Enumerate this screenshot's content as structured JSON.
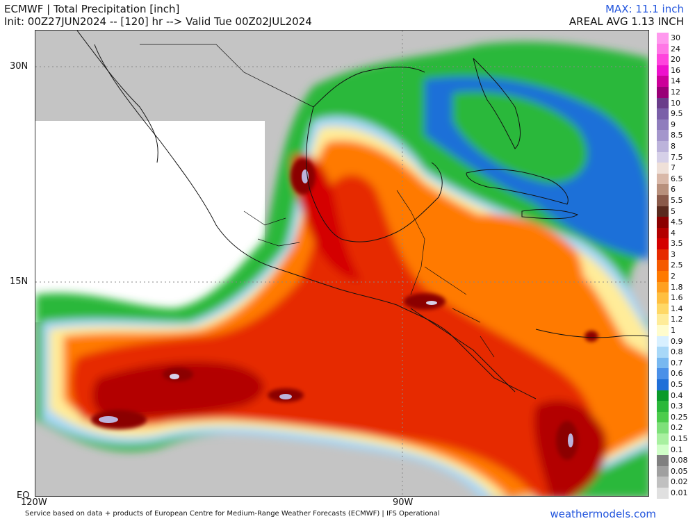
{
  "header": {
    "title": "ECMWF | Total Precipitation [inch]",
    "init": "Init: 00Z27JUN2024 -- [120] hr --> Valid Tue 00Z02JUL2024",
    "max": "MAX: 11.1 inch",
    "areal": "AREAL AVG 1.13 INCH"
  },
  "axes": {
    "lat_labels": [
      "30N",
      "15N",
      "EQ"
    ],
    "lon_labels": [
      "120W",
      "90W"
    ]
  },
  "legend": {
    "items": [
      {
        "label": "30",
        "color": "#ff99ee"
      },
      {
        "label": "24",
        "color": "#ff77e6"
      },
      {
        "label": "20",
        "color": "#ff44dd"
      },
      {
        "label": "16",
        "color": "#ee11cc"
      },
      {
        "label": "14",
        "color": "#cc0099"
      },
      {
        "label": "12",
        "color": "#990077"
      },
      {
        "label": "10",
        "color": "#6a3d8a"
      },
      {
        "label": "9.5",
        "color": "#7a5fa8"
      },
      {
        "label": "9",
        "color": "#8f7dbd"
      },
      {
        "label": "8.5",
        "color": "#a496cc"
      },
      {
        "label": "8",
        "color": "#bcb3db"
      },
      {
        "label": "7.5",
        "color": "#d6d0e8"
      },
      {
        "label": "7",
        "color": "#efe0d8"
      },
      {
        "label": "6.5",
        "color": "#d9b8a8"
      },
      {
        "label": "6",
        "color": "#b8907c"
      },
      {
        "label": "5.5",
        "color": "#8a5a4a"
      },
      {
        "label": "5",
        "color": "#5a2a1e"
      },
      {
        "label": "4.5",
        "color": "#8b0000"
      },
      {
        "label": "4",
        "color": "#b30000"
      },
      {
        "label": "3.5",
        "color": "#d40000"
      },
      {
        "label": "3",
        "color": "#e62a00"
      },
      {
        "label": "2.5",
        "color": "#f55a00"
      },
      {
        "label": "2",
        "color": "#ff7a00"
      },
      {
        "label": "1.8",
        "color": "#ffa020"
      },
      {
        "label": "1.6",
        "color": "#ffbf40"
      },
      {
        "label": "1.4",
        "color": "#ffd866"
      },
      {
        "label": "1.2",
        "color": "#ffec99"
      },
      {
        "label": "1",
        "color": "#fffccc"
      },
      {
        "label": "0.9",
        "color": "#d8f0ff"
      },
      {
        "label": "0.8",
        "color": "#a8d8f8"
      },
      {
        "label": "0.7",
        "color": "#78b8f0"
      },
      {
        "label": "0.6",
        "color": "#4a90e8"
      },
      {
        "label": "0.5",
        "color": "#1f6fd8"
      },
      {
        "label": "0.4",
        "color": "#0a9a2a"
      },
      {
        "label": "0.3",
        "color": "#2ab83a"
      },
      {
        "label": "0.25",
        "color": "#4ccc4c"
      },
      {
        "label": "0.2",
        "color": "#7ee07a"
      },
      {
        "label": "0.15",
        "color": "#a8f0a0"
      },
      {
        "label": "0.1",
        "color": "#d0ffc8"
      },
      {
        "label": "0.08",
        "color": "#808080"
      },
      {
        "label": "0.05",
        "color": "#a0a0a0"
      },
      {
        "label": "0.02",
        "color": "#c0c0c0"
      },
      {
        "label": "0.01",
        "color": "#e0e0e0"
      }
    ]
  },
  "footer": {
    "credit": "Service based on data + products of European Centre for Medium-Range Weather Forecasts (ECMWF) | IFS Operational",
    "site": "weathermodels.com"
  },
  "colors": {
    "accent_text": "#2255dd",
    "ocean_gray": "#c8c8c8",
    "land_gray": "#a8a8a8",
    "rain_heavy": "#cc2200",
    "rain_moderate": "#ff7a00",
    "rain_light_green": "#2ab83a",
    "rain_light_blue": "#1f6fd8"
  }
}
